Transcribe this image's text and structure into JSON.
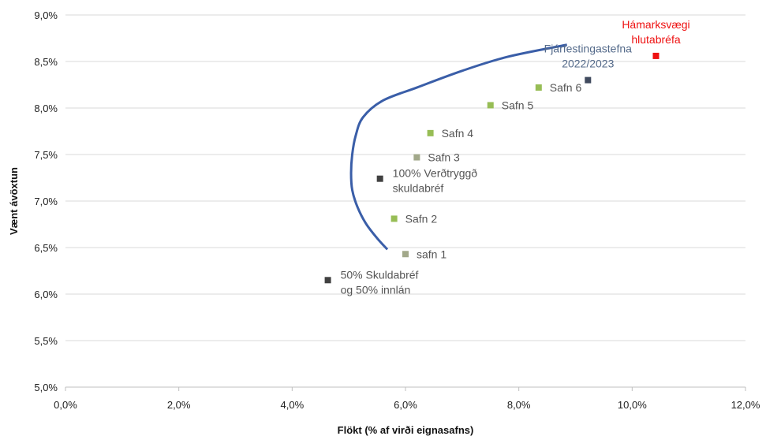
{
  "chart_data": {
    "type": "scatter",
    "xlabel": "Flökt (% af virði eignasafns)",
    "ylabel": "Vænt ávöxtun",
    "xlim": [
      0,
      12
    ],
    "ylim": [
      5,
      9
    ],
    "x_ticks": [
      "0,0%",
      "2,0%",
      "4,0%",
      "6,0%",
      "8,0%",
      "10,0%",
      "12,0%"
    ],
    "y_ticks": [
      "5,0%",
      "5,5%",
      "6,0%",
      "6,5%",
      "7,0%",
      "7,5%",
      "8,0%",
      "8,5%",
      "9,0%"
    ],
    "grid": "horizontal",
    "frontier": {
      "color": "#3a5ea8",
      "points": [
        [
          5.68,
          6.48
        ],
        [
          5.5,
          6.6
        ],
        [
          5.3,
          6.76
        ],
        [
          5.15,
          6.94
        ],
        [
          5.06,
          7.12
        ],
        [
          5.04,
          7.3
        ],
        [
          5.06,
          7.5
        ],
        [
          5.12,
          7.7
        ],
        [
          5.25,
          7.9
        ],
        [
          5.6,
          8.08
        ],
        [
          6.2,
          8.22
        ],
        [
          7.0,
          8.4
        ],
        [
          7.8,
          8.55
        ],
        [
          8.85,
          8.68
        ]
      ]
    },
    "points": [
      {
        "label": "safn 1",
        "x": 6.0,
        "y": 6.43,
        "color": "#a2a88a",
        "label_color": "#555555",
        "label_lines": [
          "safn 1"
        ]
      },
      {
        "label": "Safn 2",
        "x": 5.8,
        "y": 6.81,
        "color": "#97bd55",
        "label_color": "#555555",
        "label_lines": [
          "Safn 2"
        ]
      },
      {
        "label": "Safn 3",
        "x": 6.2,
        "y": 7.47,
        "color": "#a2a88a",
        "label_color": "#555555",
        "label_lines": [
          "Safn 3"
        ]
      },
      {
        "label": "Safn 4",
        "x": 6.44,
        "y": 7.73,
        "color": "#97bd55",
        "label_color": "#555555",
        "label_lines": [
          "Safn 4"
        ]
      },
      {
        "label": "Safn 5",
        "x": 7.5,
        "y": 8.03,
        "color": "#97bd55",
        "label_color": "#555555",
        "label_lines": [
          "Safn 5"
        ]
      },
      {
        "label": "Safn 6",
        "x": 8.35,
        "y": 8.22,
        "color": "#97bd55",
        "label_color": "#555555",
        "label_lines": [
          "Safn 6"
        ]
      },
      {
        "label": "100% Verðtryggð skuldabréf",
        "x": 5.55,
        "y": 7.24,
        "color": "#404040",
        "label_color": "#555555",
        "label_lines": [
          "100% Verðtryggð",
          "skuldabréf"
        ]
      },
      {
        "label": "50% Skuldabréf og 50% innlán",
        "x": 4.63,
        "y": 6.15,
        "color": "#404040",
        "label_color": "#555555",
        "label_lines": [
          "50% Skuldabréf",
          "og 50% innlán"
        ]
      },
      {
        "label": "Fjárfestingastefna 2022/2023",
        "x": 9.22,
        "y": 8.3,
        "color": "#404a5e",
        "label_color": "#546a8a",
        "label_lines": [
          "Fjárfestingastefna",
          "2022/2023"
        ]
      },
      {
        "label": "Hámarksvægi hlutabréfa",
        "x": 10.42,
        "y": 8.56,
        "color": "#ee1111",
        "label_color": "#ee1111",
        "label_lines": [
          "Hámarksvægi",
          "hlutabréfa"
        ]
      }
    ]
  }
}
